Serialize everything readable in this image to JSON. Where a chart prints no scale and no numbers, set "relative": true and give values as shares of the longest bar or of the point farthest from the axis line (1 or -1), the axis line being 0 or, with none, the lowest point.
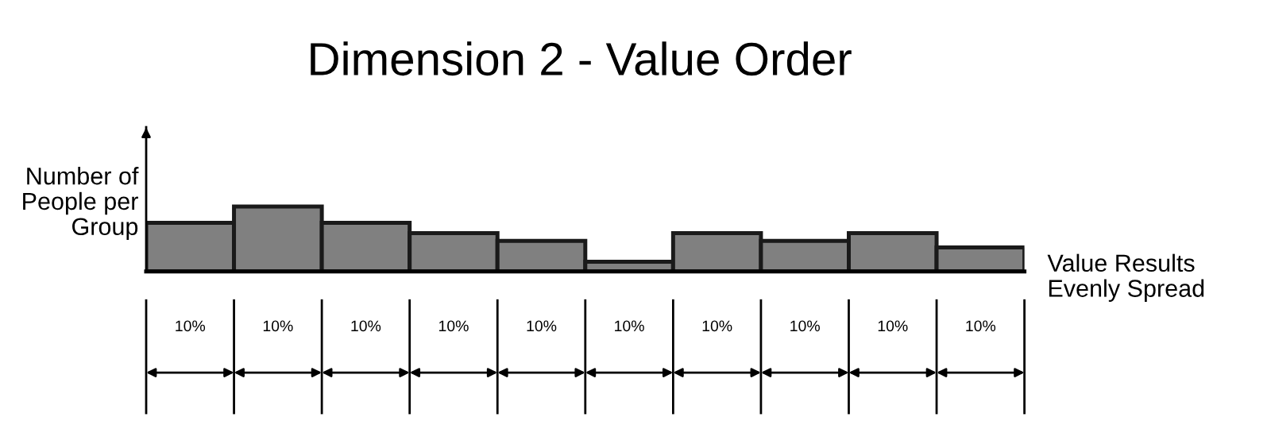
{
  "chart_data": {
    "type": "bar",
    "title": "Dimension 2 - Value Order",
    "ylabel": "Number of\nPeople per\nGroup",
    "xlabel": "Value Results\nEvenly Spread",
    "categories": [
      "10%",
      "10%",
      "10%",
      "10%",
      "10%",
      "10%",
      "10%",
      "10%",
      "10%",
      "10%"
    ],
    "values": [
      0.75,
      1,
      0.75,
      0.59,
      0.47,
      0.15,
      0.59,
      0.47,
      0.59,
      0.37
    ],
    "color": "#808080",
    "relative": true,
    "grid": false,
    "legend": false
  }
}
